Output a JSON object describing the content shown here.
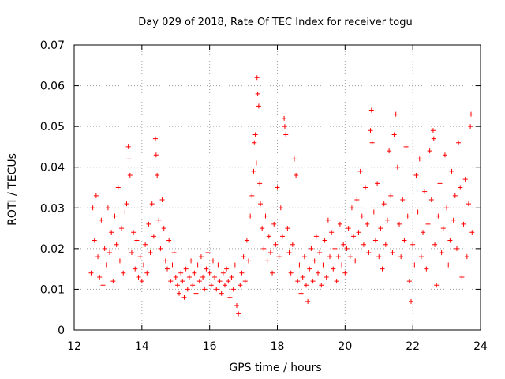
{
  "chart_data": {
    "type": "scatter",
    "title": "Day 029 of 2018, Rate Of TEC Index for receiver togu",
    "xlabel": "GPS time / hours",
    "ylabel": "ROTI / TECUs",
    "xlim": [
      12,
      24
    ],
    "ylim": [
      0,
      0.07
    ],
    "xticks": [
      "12",
      "14",
      "16",
      "18",
      "20",
      "22",
      "24"
    ],
    "yticks": [
      "0",
      "0.01",
      "0.02",
      "0.03",
      "0.04",
      "0.05",
      "0.06",
      "0.07"
    ],
    "grid": true,
    "marker": "+",
    "marker_color": "#ff0000",
    "series": [
      {
        "name": "ROTI",
        "points": [
          [
            12.5,
            0.014
          ],
          [
            12.55,
            0.03
          ],
          [
            12.6,
            0.022
          ],
          [
            12.65,
            0.033
          ],
          [
            12.7,
            0.018
          ],
          [
            12.75,
            0.013
          ],
          [
            12.8,
            0.027
          ],
          [
            12.85,
            0.011
          ],
          [
            12.9,
            0.02
          ],
          [
            12.95,
            0.016
          ],
          [
            13.0,
            0.03
          ],
          [
            13.05,
            0.019
          ],
          [
            13.1,
            0.024
          ],
          [
            13.15,
            0.012
          ],
          [
            13.2,
            0.028
          ],
          [
            13.25,
            0.021
          ],
          [
            13.3,
            0.035
          ],
          [
            13.35,
            0.017
          ],
          [
            13.4,
            0.025
          ],
          [
            13.45,
            0.014
          ],
          [
            13.5,
            0.029
          ],
          [
            13.55,
            0.031
          ],
          [
            13.6,
            0.045
          ],
          [
            13.62,
            0.042
          ],
          [
            13.65,
            0.038
          ],
          [
            13.7,
            0.019
          ],
          [
            13.75,
            0.024
          ],
          [
            13.8,
            0.015
          ],
          [
            13.85,
            0.022
          ],
          [
            13.9,
            0.013
          ],
          [
            13.95,
            0.018
          ],
          [
            14.0,
            0.012
          ],
          [
            14.05,
            0.016
          ],
          [
            14.1,
            0.021
          ],
          [
            14.15,
            0.014
          ],
          [
            14.2,
            0.026
          ],
          [
            14.25,
            0.019
          ],
          [
            14.3,
            0.031
          ],
          [
            14.35,
            0.023
          ],
          [
            14.4,
            0.047
          ],
          [
            14.42,
            0.043
          ],
          [
            14.45,
            0.038
          ],
          [
            14.5,
            0.027
          ],
          [
            14.55,
            0.02
          ],
          [
            14.6,
            0.032
          ],
          [
            14.65,
            0.025
          ],
          [
            14.7,
            0.017
          ],
          [
            14.75,
            0.015
          ],
          [
            14.8,
            0.022
          ],
          [
            14.85,
            0.012
          ],
          [
            14.9,
            0.016
          ],
          [
            14.95,
            0.019
          ],
          [
            15.0,
            0.013
          ],
          [
            15.05,
            0.011
          ],
          [
            15.1,
            0.009
          ],
          [
            15.15,
            0.014
          ],
          [
            15.2,
            0.012
          ],
          [
            15.25,
            0.008
          ],
          [
            15.3,
            0.015
          ],
          [
            15.35,
            0.01
          ],
          [
            15.4,
            0.013
          ],
          [
            15.45,
            0.017
          ],
          [
            15.5,
            0.011
          ],
          [
            15.55,
            0.014
          ],
          [
            15.6,
            0.009
          ],
          [
            15.65,
            0.016
          ],
          [
            15.7,
            0.012
          ],
          [
            15.75,
            0.018
          ],
          [
            15.8,
            0.013
          ],
          [
            15.85,
            0.01
          ],
          [
            15.9,
            0.015
          ],
          [
            15.95,
            0.019
          ],
          [
            16.0,
            0.014
          ],
          [
            16.05,
            0.011
          ],
          [
            16.1,
            0.017
          ],
          [
            16.15,
            0.013
          ],
          [
            16.2,
            0.01
          ],
          [
            16.25,
            0.016
          ],
          [
            16.3,
            0.012
          ],
          [
            16.35,
            0.009
          ],
          [
            16.4,
            0.014
          ],
          [
            16.45,
            0.011
          ],
          [
            16.5,
            0.015
          ],
          [
            16.55,
            0.012
          ],
          [
            16.6,
            0.008
          ],
          [
            16.65,
            0.013
          ],
          [
            16.7,
            0.01
          ],
          [
            16.75,
            0.016
          ],
          [
            16.8,
            0.006
          ],
          [
            16.85,
            0.004
          ],
          [
            16.9,
            0.011
          ],
          [
            16.95,
            0.014
          ],
          [
            17.0,
            0.018
          ],
          [
            17.05,
            0.012
          ],
          [
            17.1,
            0.022
          ],
          [
            17.15,
            0.017
          ],
          [
            17.2,
            0.028
          ],
          [
            17.25,
            0.033
          ],
          [
            17.3,
            0.039
          ],
          [
            17.32,
            0.046
          ],
          [
            17.35,
            0.048
          ],
          [
            17.38,
            0.041
          ],
          [
            17.4,
            0.062
          ],
          [
            17.42,
            0.058
          ],
          [
            17.45,
            0.055
          ],
          [
            17.48,
            0.036
          ],
          [
            17.5,
            0.031
          ],
          [
            17.55,
            0.025
          ],
          [
            17.6,
            0.02
          ],
          [
            17.65,
            0.028
          ],
          [
            17.7,
            0.017
          ],
          [
            17.75,
            0.023
          ],
          [
            17.8,
            0.019
          ],
          [
            17.85,
            0.014
          ],
          [
            17.9,
            0.026
          ],
          [
            17.95,
            0.021
          ],
          [
            18.0,
            0.035
          ],
          [
            18.05,
            0.018
          ],
          [
            18.1,
            0.03
          ],
          [
            18.15,
            0.023
          ],
          [
            18.2,
            0.052
          ],
          [
            18.22,
            0.05
          ],
          [
            18.25,
            0.048
          ],
          [
            18.3,
            0.025
          ],
          [
            18.35,
            0.019
          ],
          [
            18.4,
            0.014
          ],
          [
            18.45,
            0.021
          ],
          [
            18.5,
            0.042
          ],
          [
            18.55,
            0.038
          ],
          [
            18.6,
            0.012
          ],
          [
            18.65,
            0.016
          ],
          [
            18.7,
            0.009
          ],
          [
            18.75,
            0.013
          ],
          [
            18.8,
            0.018
          ],
          [
            18.85,
            0.011
          ],
          [
            18.9,
            0.007
          ],
          [
            18.95,
            0.015
          ],
          [
            19.0,
            0.02
          ],
          [
            19.05,
            0.012
          ],
          [
            19.1,
            0.017
          ],
          [
            19.15,
            0.023
          ],
          [
            19.2,
            0.014
          ],
          [
            19.25,
            0.019
          ],
          [
            19.3,
            0.011
          ],
          [
            19.35,
            0.016
          ],
          [
            19.4,
            0.022
          ],
          [
            19.45,
            0.013
          ],
          [
            19.5,
            0.027
          ],
          [
            19.55,
            0.018
          ],
          [
            19.6,
            0.024
          ],
          [
            19.65,
            0.015
          ],
          [
            19.7,
            0.02
          ],
          [
            19.75,
            0.012
          ],
          [
            19.8,
            0.018
          ],
          [
            19.85,
            0.026
          ],
          [
            19.9,
            0.016
          ],
          [
            19.95,
            0.021
          ],
          [
            20.0,
            0.014
          ],
          [
            20.05,
            0.02
          ],
          [
            20.1,
            0.025
          ],
          [
            20.15,
            0.018
          ],
          [
            20.2,
            0.03
          ],
          [
            20.25,
            0.023
          ],
          [
            20.3,
            0.017
          ],
          [
            20.35,
            0.032
          ],
          [
            20.4,
            0.024
          ],
          [
            20.45,
            0.039
          ],
          [
            20.5,
            0.028
          ],
          [
            20.55,
            0.021
          ],
          [
            20.6,
            0.035
          ],
          [
            20.65,
            0.026
          ],
          [
            20.7,
            0.019
          ],
          [
            20.75,
            0.049
          ],
          [
            20.78,
            0.054
          ],
          [
            20.8,
            0.046
          ],
          [
            20.85,
            0.029
          ],
          [
            20.9,
            0.022
          ],
          [
            20.95,
            0.036
          ],
          [
            21.0,
            0.018
          ],
          [
            21.05,
            0.025
          ],
          [
            21.1,
            0.015
          ],
          [
            21.15,
            0.031
          ],
          [
            21.2,
            0.021
          ],
          [
            21.25,
            0.027
          ],
          [
            21.3,
            0.044
          ],
          [
            21.35,
            0.033
          ],
          [
            21.4,
            0.019
          ],
          [
            21.45,
            0.048
          ],
          [
            21.5,
            0.053
          ],
          [
            21.55,
            0.04
          ],
          [
            21.6,
            0.026
          ],
          [
            21.65,
            0.018
          ],
          [
            21.7,
            0.032
          ],
          [
            21.75,
            0.022
          ],
          [
            21.8,
            0.045
          ],
          [
            21.85,
            0.028
          ],
          [
            21.9,
            0.012
          ],
          [
            21.95,
            0.007
          ],
          [
            22.0,
            0.021
          ],
          [
            22.05,
            0.016
          ],
          [
            22.1,
            0.038
          ],
          [
            22.15,
            0.029
          ],
          [
            22.2,
            0.042
          ],
          [
            22.25,
            0.018
          ],
          [
            22.3,
            0.024
          ],
          [
            22.35,
            0.034
          ],
          [
            22.4,
            0.015
          ],
          [
            22.45,
            0.026
          ],
          [
            22.5,
            0.044
          ],
          [
            22.55,
            0.032
          ],
          [
            22.6,
            0.049
          ],
          [
            22.62,
            0.047
          ],
          [
            22.65,
            0.021
          ],
          [
            22.7,
            0.011
          ],
          [
            22.75,
            0.028
          ],
          [
            22.8,
            0.036
          ],
          [
            22.85,
            0.019
          ],
          [
            22.9,
            0.025
          ],
          [
            22.95,
            0.043
          ],
          [
            23.0,
            0.03
          ],
          [
            23.05,
            0.016
          ],
          [
            23.1,
            0.022
          ],
          [
            23.15,
            0.039
          ],
          [
            23.2,
            0.027
          ],
          [
            23.25,
            0.033
          ],
          [
            23.3,
            0.02
          ],
          [
            23.35,
            0.046
          ],
          [
            23.4,
            0.035
          ],
          [
            23.45,
            0.013
          ],
          [
            23.5,
            0.026
          ],
          [
            23.55,
            0.037
          ],
          [
            23.6,
            0.018
          ],
          [
            23.65,
            0.031
          ],
          [
            23.7,
            0.05
          ],
          [
            23.72,
            0.053
          ],
          [
            23.75,
            0.024
          ]
        ]
      }
    ]
  }
}
